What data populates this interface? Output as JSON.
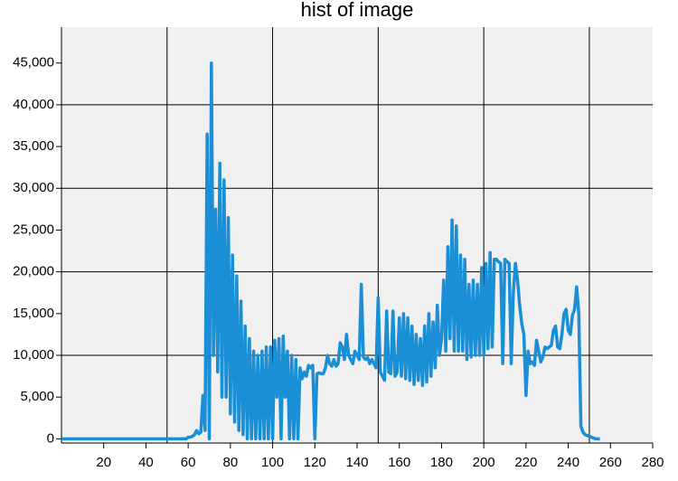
{
  "chart_data": {
    "type": "line",
    "title": "hist of image",
    "x": [
      0,
      1,
      2,
      3,
      4,
      5,
      6,
      7,
      8,
      9,
      10,
      11,
      12,
      13,
      14,
      15,
      16,
      17,
      18,
      19,
      20,
      21,
      22,
      23,
      24,
      25,
      26,
      27,
      28,
      29,
      30,
      31,
      32,
      33,
      34,
      35,
      36,
      37,
      38,
      39,
      40,
      41,
      42,
      43,
      44,
      45,
      46,
      47,
      48,
      49,
      50,
      51,
      52,
      53,
      54,
      55,
      56,
      57,
      58,
      59,
      60,
      61,
      62,
      63,
      64,
      65,
      66,
      67,
      68,
      69,
      70,
      71,
      72,
      73,
      74,
      75,
      76,
      77,
      78,
      79,
      80,
      81,
      82,
      83,
      84,
      85,
      86,
      87,
      88,
      89,
      90,
      91,
      92,
      93,
      94,
      95,
      96,
      97,
      98,
      99,
      100,
      101,
      102,
      103,
      104,
      105,
      106,
      107,
      108,
      109,
      110,
      111,
      112,
      113,
      114,
      115,
      116,
      117,
      118,
      119,
      120,
      121,
      122,
      123,
      124,
      125,
      126,
      127,
      128,
      129,
      130,
      131,
      132,
      133,
      134,
      135,
      136,
      137,
      138,
      139,
      140,
      141,
      142,
      143,
      144,
      145,
      146,
      147,
      148,
      149,
      150,
      151,
      152,
      153,
      154,
      155,
      156,
      157,
      158,
      159,
      160,
      161,
      162,
      163,
      164,
      165,
      166,
      167,
      168,
      169,
      170,
      171,
      172,
      173,
      174,
      175,
      176,
      177,
      178,
      179,
      180,
      181,
      182,
      183,
      184,
      185,
      186,
      187,
      188,
      189,
      190,
      191,
      192,
      193,
      194,
      195,
      196,
      197,
      198,
      199,
      200,
      201,
      202,
      203,
      204,
      205,
      206,
      207,
      208,
      209,
      210,
      211,
      212,
      213,
      214,
      215,
      216,
      217,
      218,
      219,
      220,
      221,
      222,
      223,
      224,
      225,
      226,
      227,
      228,
      229,
      230,
      231,
      232,
      233,
      234,
      235,
      236,
      237,
      238,
      239,
      240,
      241,
      242,
      243,
      244,
      245,
      246,
      247,
      248,
      249,
      250,
      251,
      252,
      253,
      254,
      255
    ],
    "series": [
      {
        "color": "#1a8fd6",
        "values": [
          0,
          0,
          0,
          0,
          0,
          0,
          0,
          0,
          0,
          0,
          0,
          0,
          0,
          0,
          0,
          0,
          0,
          0,
          0,
          0,
          0,
          0,
          0,
          0,
          0,
          0,
          0,
          0,
          0,
          0,
          0,
          0,
          0,
          0,
          0,
          0,
          0,
          0,
          0,
          0,
          0,
          0,
          0,
          0,
          0,
          0,
          0,
          0,
          0,
          0,
          0,
          0,
          0,
          0,
          0,
          0,
          0,
          0,
          0,
          0,
          200,
          200,
          300,
          500,
          1000,
          600,
          800,
          5200,
          1000,
          36500,
          0,
          45000,
          10000,
          27500,
          8000,
          33000,
          5000,
          31000,
          5000,
          26500,
          3000,
          22000,
          2000,
          19500,
          1000,
          16500,
          500,
          13500,
          0,
          12000,
          0,
          10500,
          0,
          10000,
          0,
          10500,
          0,
          11000,
          0,
          11000,
          0,
          11800,
          5000,
          12000,
          0,
          12300,
          5000,
          10500,
          0,
          10000,
          0,
          9500,
          0,
          8500,
          7200,
          8000,
          7500,
          8800,
          8500,
          8800,
          0,
          7800,
          7900,
          7800,
          7800,
          8500,
          10000,
          9000,
          8700,
          9500,
          8700,
          9000,
          11500,
          11000,
          9500,
          12500,
          10000,
          9500,
          9000,
          10500,
          10000,
          9500,
          18500,
          9800,
          9500,
          9700,
          9000,
          9500,
          9000,
          8500,
          16900,
          8000,
          7500,
          7000,
          15300,
          8000,
          7800,
          15300,
          7500,
          8000,
          14500,
          7500,
          15000,
          7200,
          14500,
          7000,
          13500,
          6500,
          12500,
          7000,
          12000,
          6400,
          13500,
          6800,
          15000,
          7500,
          14000,
          8500,
          16000,
          10000,
          12000,
          19000,
          10500,
          23000,
          12000,
          26200,
          10500,
          25500,
          10500,
          22000,
          10500,
          21500,
          9500,
          18500,
          9800,
          19000,
          10000,
          18500,
          10000,
          20500,
          10000,
          21000,
          10800,
          22300,
          11000,
          21500,
          21500,
          21200,
          21000,
          9000,
          21500,
          21200,
          21000,
          9000,
          17500,
          21000,
          19000,
          16000,
          13800,
          12500,
          5200,
          10500,
          9000,
          9200,
          8800,
          11800,
          10500,
          9200,
          9800,
          11000,
          10800,
          11000,
          11200,
          13000,
          13500,
          11000,
          10800,
          12500,
          15000,
          15500,
          13000,
          12500,
          14800,
          15500,
          18200,
          15000,
          1500,
          800,
          500,
          400,
          300,
          200,
          100,
          0,
          0,
          0
        ]
      }
    ],
    "xlim": [
      0,
      280
    ],
    "xticks": [
      20,
      40,
      60,
      80,
      100,
      120,
      140,
      160,
      180,
      200,
      220,
      240,
      260,
      280
    ],
    "ylim": [
      -500,
      49300
    ],
    "yticks": [
      0,
      {
        "value": 5000,
        "label": "5,000"
      },
      {
        "value": 10000,
        "label": "10,000"
      },
      {
        "value": 15000,
        "label": "15,000"
      },
      {
        "value": 20000,
        "label": "20,000"
      },
      {
        "value": 25000,
        "label": "25,000"
      },
      {
        "value": 30000,
        "label": "30,000"
      },
      {
        "value": 35000,
        "label": "35,000"
      },
      {
        "value": 40000,
        "label": "40,000"
      },
      {
        "value": 45000,
        "label": "45,000"
      }
    ],
    "x_grid": [
      50,
      100,
      150,
      200,
      250
    ],
    "y_grid": [
      10000,
      20000,
      30000,
      40000
    ]
  }
}
